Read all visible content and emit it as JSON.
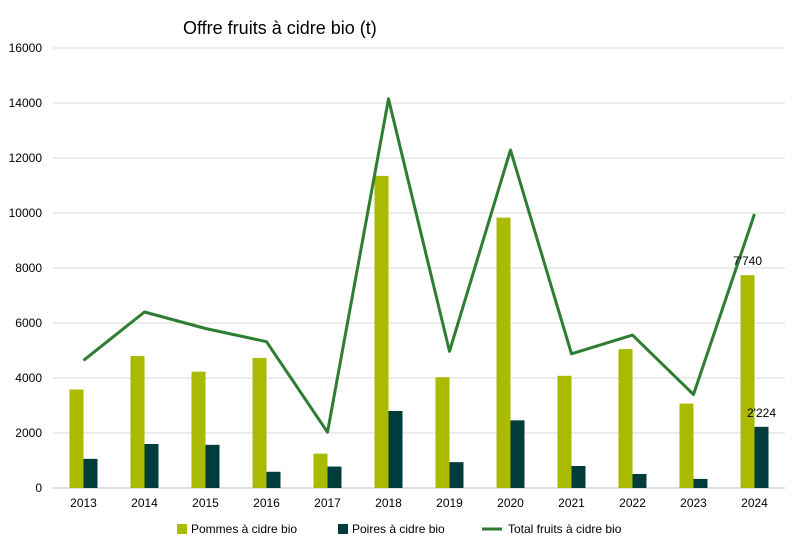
{
  "chart_data": {
    "type": "bar",
    "title": "Offre fruits à cidre bio (t)",
    "xlabel": "",
    "ylabel": "",
    "categories": [
      "2013",
      "2014",
      "2015",
      "2016",
      "2017",
      "2018",
      "2019",
      "2020",
      "2021",
      "2022",
      "2023",
      "2024"
    ],
    "ylim": [
      0,
      16000
    ],
    "yticks": [
      0,
      2000,
      4000,
      6000,
      8000,
      10000,
      12000,
      14000,
      16000
    ],
    "grid": true,
    "legend_position": "bottom",
    "series": [
      {
        "name": "Pommes à cidre bio",
        "type": "bar",
        "color": "#a9ba00",
        "values": [
          3580,
          4800,
          4230,
          4730,
          1250,
          11350,
          4030,
          9830,
          4080,
          5050,
          3070,
          7740
        ]
      },
      {
        "name": "Poires à cidre bio",
        "type": "bar",
        "color": "#003c3c",
        "values": [
          1060,
          1600,
          1570,
          590,
          780,
          2800,
          940,
          2460,
          800,
          510,
          330,
          2224
        ]
      },
      {
        "name": "Total fruits à cidre bio",
        "type": "line",
        "color": "#2e7d32",
        "values": [
          4640,
          6400,
          5800,
          5320,
          2030,
          14150,
          4970,
          12290,
          4880,
          5560,
          3400,
          9964
        ]
      }
    ],
    "data_labels": [
      {
        "series": 0,
        "index": 11,
        "text": "7'740"
      },
      {
        "series": 1,
        "index": 11,
        "text": "2'224"
      }
    ]
  }
}
